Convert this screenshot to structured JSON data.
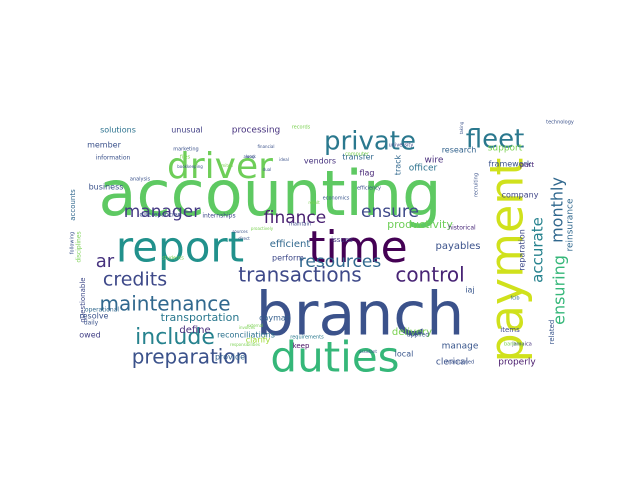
{
  "wordcloud": {
    "words": [
      {
        "text": "accounting",
        "color": "#5ec962"
      },
      {
        "text": "branch",
        "color": "#3b528b"
      },
      {
        "text": "duties",
        "color": "#35b779"
      },
      {
        "text": "payment",
        "color": "#d0e11c"
      },
      {
        "text": "report",
        "color": "#21918c"
      },
      {
        "text": "driver",
        "color": "#6ece58"
      },
      {
        "text": "time",
        "color": "#440154"
      },
      {
        "text": "fleet",
        "color": "#2a788e"
      },
      {
        "text": "private",
        "color": "#2a788e"
      },
      {
        "text": "transactions",
        "color": "#3e4989"
      },
      {
        "text": "control",
        "color": "#482475"
      },
      {
        "text": "resources",
        "color": "#31688e"
      },
      {
        "text": "credits",
        "color": "#3e4989"
      },
      {
        "text": "maintenance",
        "color": "#31688e"
      },
      {
        "text": "include",
        "color": "#26828e"
      },
      {
        "text": "preparation",
        "color": "#3b528b"
      },
      {
        "text": "finance",
        "color": "#481f70"
      },
      {
        "text": "ensure",
        "color": "#3e4989"
      },
      {
        "text": "manager",
        "color": "#443983"
      },
      {
        "text": "ar",
        "color": "#46327e"
      },
      {
        "text": "monthly",
        "color": "#31688e"
      },
      {
        "text": "accurate",
        "color": "#26828e"
      },
      {
        "text": "ensuring",
        "color": "#35b779"
      },
      {
        "text": "productivity",
        "color": "#6ece58"
      },
      {
        "text": "transportation",
        "color": "#2a788e"
      },
      {
        "text": "define",
        "color": "#472d7b"
      },
      {
        "text": "efficient",
        "color": "#31688e"
      },
      {
        "text": "payables",
        "color": "#3b528b"
      },
      {
        "text": "reparation",
        "color": "#3e4989"
      },
      {
        "text": "reinsurance",
        "color": "#31688e"
      },
      {
        "text": "delivery",
        "color": "#7ad151"
      },
      {
        "text": "manage",
        "color": "#39568c"
      },
      {
        "text": "clerical",
        "color": "#3b528b"
      },
      {
        "text": "properly",
        "color": "#481a6c"
      },
      {
        "text": "processing",
        "color": "#46327e"
      },
      {
        "text": "solutions",
        "color": "#2c728e"
      },
      {
        "text": "unusual",
        "color": "#424086"
      },
      {
        "text": "member",
        "color": "#3b528b"
      },
      {
        "text": "business",
        "color": "#3b528b"
      },
      {
        "text": "transfer",
        "color": "#31688e"
      },
      {
        "text": "wire",
        "color": "#472d7b"
      },
      {
        "text": "officer",
        "color": "#2c728e"
      },
      {
        "text": "research",
        "color": "#33638d"
      },
      {
        "text": "support",
        "color": "#7ad151"
      },
      {
        "text": "framework",
        "color": "#3b528b"
      },
      {
        "text": "company",
        "color": "#404688"
      },
      {
        "text": "vendors",
        "color": "#46327e"
      },
      {
        "text": "perform",
        "color": "#3e4989"
      },
      {
        "text": "cayman",
        "color": "#355f8d"
      },
      {
        "text": "reconciliations",
        "color": "#2c728e"
      },
      {
        "text": "provide",
        "color": "#33638d"
      },
      {
        "text": "clarify",
        "color": "#a0da39"
      },
      {
        "text": "local",
        "color": "#39568c"
      },
      {
        "text": "keep",
        "color": "#471063"
      },
      {
        "text": "iaj",
        "color": "#39568c"
      },
      {
        "text": "questionable",
        "color": "#3e4989"
      },
      {
        "text": "resolve",
        "color": "#3b528b"
      },
      {
        "text": "owed",
        "color": "#424086"
      },
      {
        "text": "accounts",
        "color": "#31688e"
      },
      {
        "text": "flag",
        "color": "#482878"
      },
      {
        "text": "track",
        "color": "#31688e"
      },
      {
        "text": "issues",
        "color": "#443983"
      },
      {
        "text": "related",
        "color": "#39568c"
      },
      {
        "text": "part",
        "color": "#482878"
      },
      {
        "text": "items",
        "color": "#3e4989"
      },
      {
        "text": "applied",
        "color": "#39568c"
      },
      {
        "text": "historical",
        "color": "#482878"
      },
      {
        "text": "jamaica",
        "color": "#46327e"
      },
      {
        "text": "fcib",
        "color": "#31688e"
      },
      {
        "text": "maintained",
        "color": "#3b528b"
      },
      {
        "text": "information",
        "color": "#3b528b"
      },
      {
        "text": "records",
        "color": "#7ad151"
      },
      {
        "text": "computer",
        "color": "#7ad151"
      },
      {
        "text": "university",
        "color": "#3e4989"
      },
      {
        "text": "economics",
        "color": "#39568c"
      },
      {
        "text": "efficiency",
        "color": "#3b528b"
      },
      {
        "text": "recruiting",
        "color": "#3b528b"
      },
      {
        "text": "discrepancies",
        "color": "#3b528b"
      },
      {
        "text": "internships",
        "color": "#3e4989"
      },
      {
        "text": "students",
        "color": "#7ad151"
      },
      {
        "text": "analysis",
        "color": "#3b528b"
      },
      {
        "text": "following",
        "color": "#3b528b"
      },
      {
        "text": "disciplines",
        "color": "#7ad151"
      },
      {
        "text": "operational",
        "color": "#31688e"
      },
      {
        "text": "daily",
        "color": "#3b528b"
      },
      {
        "text": "requirements",
        "color": "#2a788e"
      },
      {
        "text": "maintain",
        "color": "#3e4989"
      },
      {
        "text": "assistant",
        "color": "#3b528b"
      },
      {
        "text": "technology",
        "color": "#3b528b"
      },
      {
        "text": "banking",
        "color": "#7ad151"
      },
      {
        "text": "marketing",
        "color": "#3b528b"
      },
      {
        "text": "files",
        "color": "#7ad151"
      },
      {
        "text": "direct",
        "color": "#3b528b"
      },
      {
        "text": "along",
        "color": "#3b528b"
      },
      {
        "text": "taking",
        "color": "#3b528b"
      },
      {
        "text": "work",
        "color": "#3b528b"
      },
      {
        "text": "dual",
        "color": "#3b528b"
      },
      {
        "text": "responsibilities",
        "color": "#7ad151"
      },
      {
        "text": "external",
        "color": "#7ad151"
      },
      {
        "text": "invoices",
        "color": "#7ad151"
      },
      {
        "text": "sources",
        "color": "#3b528b"
      },
      {
        "text": "limited",
        "color": "#7ad151"
      },
      {
        "text": "financial",
        "color": "#3b528b"
      },
      {
        "text": "ideal",
        "color": "#3b528b"
      },
      {
        "text": "bookkeeping",
        "color": "#3b528b"
      },
      {
        "text": "result",
        "color": "#7ad151"
      },
      {
        "text": "proactively",
        "color": "#7ad151"
      }
    ]
  }
}
